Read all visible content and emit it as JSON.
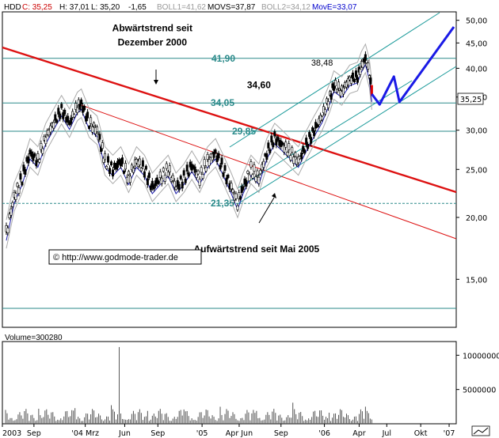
{
  "header": {
    "symbol": "HDD",
    "items": [
      {
        "text": "C: 35,25",
        "color": "#cc0000"
      },
      {
        "text": "H: 37,01",
        "color": "#000000"
      },
      {
        "text": "L: 35,20",
        "color": "#000000"
      },
      {
        "text": "-1,65",
        "color": "#000000"
      },
      {
        "text": "BOLL1=41,62",
        "color": "#999999"
      },
      {
        "text": "MOVS=37,87",
        "color": "#000000"
      },
      {
        "text": "BOLL2=34,12",
        "color": "#999999"
      },
      {
        "text": "MovE=33,07",
        "color": "#0000cc"
      }
    ]
  },
  "volume_label": "Volume=300280",
  "copyright": "© http://www.godmode-trader.de",
  "current_price_tag": "35,25",
  "chart_data": {
    "type": "line",
    "title": "",
    "y_scale": "log",
    "ylim": [
      12,
      52
    ],
    "y_ticks": [
      "50,00",
      "45,00",
      "40,00",
      "35,00",
      "30,00",
      "25,00",
      "20,00",
      "15,00"
    ],
    "y_tick_values": [
      50,
      45,
      40,
      35,
      30,
      25,
      20,
      15
    ],
    "x_ticks": [
      "2003",
      "Sep",
      "'04 Mrz",
      "Jun",
      "Sep",
      "'05",
      "Apr Jun",
      "Sep",
      "'06",
      "Apr",
      "Jul",
      "Okt",
      "'07"
    ],
    "x_tick_index": [
      0,
      40,
      105,
      155,
      197,
      253,
      300,
      353,
      408,
      452,
      487,
      530,
      566
    ],
    "volume_ticks": [
      "10000000",
      "5000000"
    ],
    "volume_tick_values": [
      10000000,
      5000000
    ],
    "volume_max": 12000000,
    "price_path": [
      [
        5,
        18.5
      ],
      [
        15,
        22
      ],
      [
        25,
        24
      ],
      [
        35,
        27
      ],
      [
        45,
        26
      ],
      [
        55,
        29
      ],
      [
        65,
        31
      ],
      [
        75,
        33
      ],
      [
        85,
        31
      ],
      [
        95,
        33.5
      ],
      [
        100,
        34
      ],
      [
        110,
        31
      ],
      [
        120,
        30
      ],
      [
        125,
        28
      ],
      [
        130,
        26
      ],
      [
        140,
        25
      ],
      [
        150,
        26
      ],
      [
        160,
        24
      ],
      [
        170,
        26
      ],
      [
        180,
        25
      ],
      [
        190,
        23
      ],
      [
        200,
        24
      ],
      [
        210,
        25
      ],
      [
        220,
        23
      ],
      [
        230,
        24
      ],
      [
        240,
        25.5
      ],
      [
        250,
        24
      ],
      [
        260,
        26
      ],
      [
        270,
        27
      ],
      [
        280,
        25
      ],
      [
        290,
        23
      ],
      [
        298,
        21.35
      ],
      [
        305,
        23
      ],
      [
        315,
        25
      ],
      [
        325,
        24
      ],
      [
        335,
        27
      ],
      [
        345,
        29
      ],
      [
        355,
        28
      ],
      [
        365,
        27
      ],
      [
        375,
        26
      ],
      [
        385,
        28
      ],
      [
        395,
        30
      ],
      [
        405,
        32
      ],
      [
        415,
        35
      ],
      [
        420,
        37
      ],
      [
        430,
        36
      ],
      [
        440,
        38
      ],
      [
        450,
        38.5
      ],
      [
        455,
        40.5
      ],
      [
        460,
        41.9
      ],
      [
        465,
        39
      ],
      [
        468,
        35.25
      ]
    ],
    "forecast_path": [
      [
        468,
        35.5
      ],
      [
        478,
        33.8
      ],
      [
        496,
        38.5
      ],
      [
        503,
        34.2
      ],
      [
        572,
        48.5
      ]
    ],
    "levels": [
      {
        "label": "41,90",
        "value": 41.9
      },
      {
        "label": "34,05",
        "value": 34.05
      },
      {
        "label": "29,85",
        "value": 29.85
      },
      {
        "label": "21,35",
        "value": 21.35
      }
    ],
    "annotations": [
      {
        "text": "Abwärtstrend seit",
        "value_x": 190,
        "value_y": 47.5
      },
      {
        "text": "Dezember 2000",
        "value_x": 190,
        "value_y": 44.5
      },
      {
        "text": "34,60",
        "value_x": 325,
        "value_y": 36.5
      },
      {
        "text": "38,48",
        "value_x": 405,
        "value_y": 40.5
      },
      {
        "text": "Aufwärtstrend seit Mai 2005",
        "value_x": 322,
        "value_y": 17.0
      }
    ],
    "volume_spike": {
      "index": 148,
      "value": 11200000
    }
  }
}
